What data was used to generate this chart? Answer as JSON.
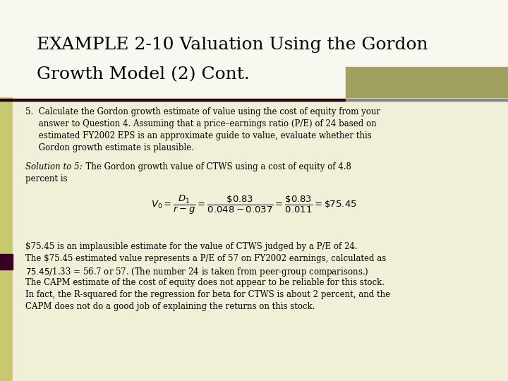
{
  "title_line1": "EXAMPLE 2-10 Valuation Using the Gordon",
  "title_line2": "Growth Model (2) Cont.",
  "bg_color": "#f0f0d0",
  "title_bg": "#f0f0d0",
  "left_bar_color": "#d0d090",
  "olive_bar_color": "#a8a870",
  "separator_color": "#3a0020",
  "body_text_line1": "5.  Calculate the Gordon growth estimate of value using the cost of equity from your",
  "body_text_line2": "     answer to Question 4. Assuming that a price–earnings ratio (P/E) of 24 based on",
  "body_text_line3": "     estimated FY2002 EPS is an approximate guide to value, evaluate whether this",
  "body_text_line4": "     Gordon growth estimate is plausible.",
  "solution_italic": "Solution to 5:",
  "solution_rest": "  The Gordon growth value of CTWS using a cost of equity of 4.8",
  "solution_line2": "percent is",
  "bottom_text": [
    "$75.45 is an implausible estimate for the value of CTWS judged by a P/E of 24.",
    "The $75.45 estimated value represents a P/E of 57 on FY2002 earnings, calculated as",
    "$75.45/$1.33 = 56.7 or 57. (The number 24 is taken from peer-group comparisons.)",
    "The CAPM estimate of the cost of equity does not appear to be reliable for this stock.",
    "In fact, the R-squared for the regression for beta for CTWS is about 2 percent, and the",
    "CAPM does not do a good job of explaining the returns on this stock."
  ],
  "darkred_sq_color": "#3a0020"
}
